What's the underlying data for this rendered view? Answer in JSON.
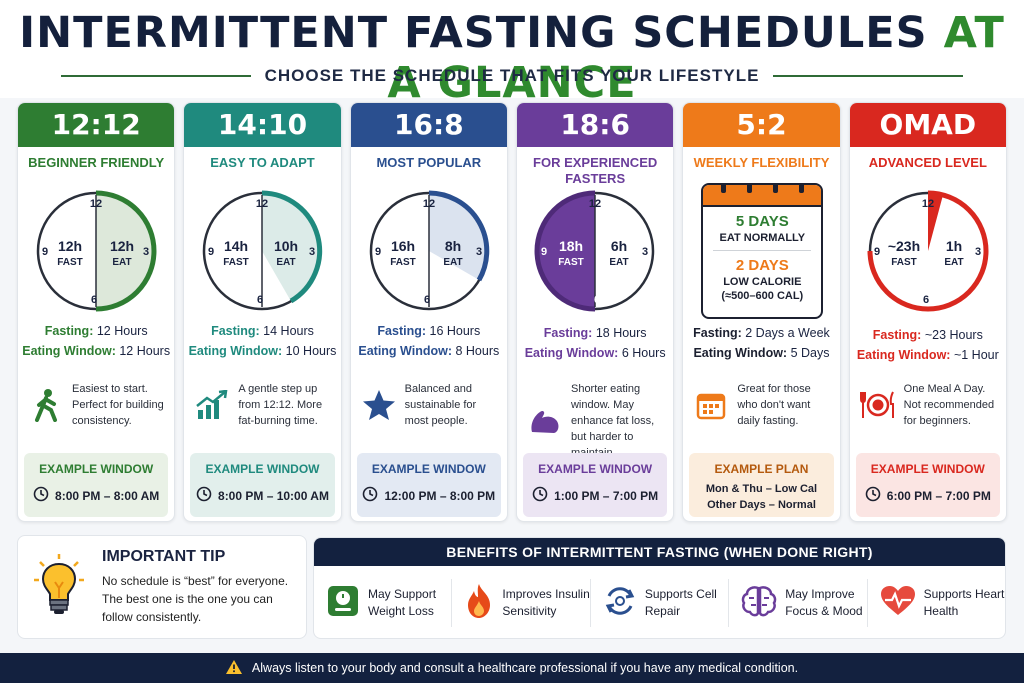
{
  "header": {
    "title_main": "INTERMITTENT FASTING SCHEDULES",
    "title_accent": "AT A GLANCE",
    "subtitle": "CHOOSE THE SCHEDULE THAT FITS YOUR LIFESTYLE"
  },
  "colors": {
    "c1212": "#2e7d32",
    "c1410": "#1f8a7e",
    "c168": "#2a4f8f",
    "c186": "#6a3d9a",
    "c52": "#ee7a1a",
    "comad": "#d9281f",
    "navy": "#13213f"
  },
  "cards": [
    {
      "name": "12:12",
      "sub": "BEGINNER FRIENDLY",
      "clock": {
        "fast": "12h",
        "fast_label": "FAST",
        "eat": "12h",
        "eat_label": "EAT",
        "n12": "12",
        "n3": "3",
        "n6": "6",
        "n9": "9"
      },
      "fasting_label": "Fasting:",
      "fasting_value": "12 Hours",
      "eating_label": "Eating Window:",
      "eating_value": "12 Hours",
      "desc": "Easiest to start. Perfect for building consistency.",
      "icon": "walking-person-icon",
      "example_title": "EXAMPLE WINDOW",
      "example_value": "8:00 PM – 8:00 AM"
    },
    {
      "name": "14:10",
      "sub": "EASY TO ADAPT",
      "clock": {
        "fast": "14h",
        "fast_label": "FAST",
        "eat": "10h",
        "eat_label": "EAT",
        "n12": "12",
        "n3": "3",
        "n6": "6",
        "n9": "9"
      },
      "fasting_label": "Fasting:",
      "fasting_value": "14 Hours",
      "eating_label": "Eating Window:",
      "eating_value": "10 Hours",
      "desc": "A gentle step up from 12:12. More fat-burning time.",
      "icon": "growth-chart-icon",
      "example_title": "EXAMPLE WINDOW",
      "example_value": "8:00 PM – 10:00 AM"
    },
    {
      "name": "16:8",
      "sub": "MOST POPULAR",
      "clock": {
        "fast": "16h",
        "fast_label": "FAST",
        "eat": "8h",
        "eat_label": "EAT",
        "n12": "12",
        "n3": "3",
        "n6": "6",
        "n9": "9"
      },
      "fasting_label": "Fasting:",
      "fasting_value": "16 Hours",
      "eating_label": "Eating Window:",
      "eating_value": "8 Hours",
      "desc": "Balanced and sustainable for most people.",
      "icon": "star-icon",
      "example_title": "EXAMPLE WINDOW",
      "example_value": "12:00 PM – 8:00 PM"
    },
    {
      "name": "18:6",
      "sub": "FOR EXPERIENCED FASTERS",
      "clock": {
        "fast": "18h",
        "fast_label": "FAST",
        "eat": "6h",
        "eat_label": "EAT",
        "n12": "12",
        "n3": "3",
        "n6": "6",
        "n9": "9"
      },
      "fasting_label": "Fasting:",
      "fasting_value": "18 Hours",
      "eating_label": "Eating Window:",
      "eating_value": "6 Hours",
      "desc": "Shorter eating window. May enhance fat loss, but harder to maintain.",
      "icon": "flexed-arm-icon",
      "example_title": "EXAMPLE WINDOW",
      "example_value": "1:00 PM – 7:00 PM"
    },
    {
      "name": "5:2",
      "sub": "WEEKLY FLEXIBILITY",
      "calendar": {
        "days1": "5 DAYS",
        "eat1": "EAT NORMALLY",
        "days2": "2 DAYS",
        "eat2": "LOW CALORIE",
        "cal": "(≈500–600 CAL)"
      },
      "fasting_label": "Fasting:",
      "fasting_value": "2 Days a Week",
      "eating_label": "Eating Window:",
      "eating_value": "5 Days",
      "desc": "Great for those who don't want daily fasting.",
      "icon": "calendar-icon",
      "example_title": "EXAMPLE PLAN",
      "example_line1": "Mon & Thu – Low Cal",
      "example_line2": "Other Days – Normal"
    },
    {
      "name": "OMAD",
      "sub": "ADVANCED LEVEL",
      "clock": {
        "fast": "~23h",
        "fast_label": "FAST",
        "eat": "1h",
        "eat_label": "EAT",
        "n12": "12",
        "n3": "3",
        "n6": "6",
        "n9": "9"
      },
      "fasting_label": "Fasting:",
      "fasting_value": "~23 Hours",
      "eating_label": "Eating Window:",
      "eating_value": "~1 Hour",
      "desc": "One Meal A Day. Not recommended for beginners.",
      "icon": "plate-fork-knife-icon",
      "example_title": "EXAMPLE WINDOW",
      "example_value": "6:00 PM – 7:00 PM"
    }
  ],
  "tip": {
    "title": "IMPORTANT TIP",
    "text": "No schedule is “best” for everyone. The best one is the one you can follow consistently."
  },
  "benefits": {
    "title": "BENEFITS OF INTERMITTENT FASTING (WHEN DONE RIGHT)",
    "items": [
      {
        "label": "May Support Weight Loss",
        "icon": "scale-icon"
      },
      {
        "label": "Improves Insulin Sensitivity",
        "icon": "flame-icon"
      },
      {
        "label": "Supports Cell Repair",
        "icon": "cell-cycle-icon"
      },
      {
        "label": "May Improve Focus & Mood",
        "icon": "brain-icon"
      },
      {
        "label": "Supports Heart Health",
        "icon": "heart-pulse-icon"
      }
    ]
  },
  "footer": {
    "text": "Always listen to your body and consult a healthcare professional if you have any medical condition."
  }
}
